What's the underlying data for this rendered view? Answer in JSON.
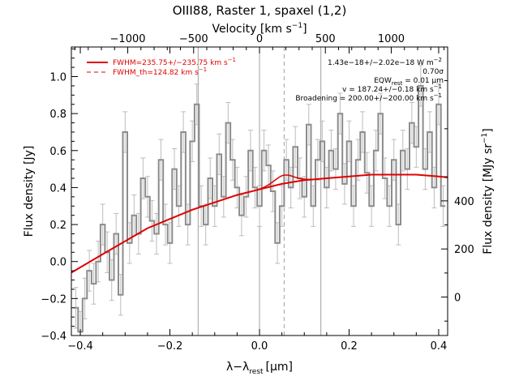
{
  "chart_data": {
    "type": "line",
    "title": "OIII88, Raster 1, spaxel (1,2)",
    "xlabel": "λ−λ",
    "xlabel_sub": "rest",
    "xlabel_unit": "[μm]",
    "ylabel": "Flux density [Jy]",
    "y2label": "Flux density [MJy sr",
    "y2label_sup": "−1",
    "y2label_end": "]",
    "toplabel": "Velocity [km s",
    "toplabel_sup": "−1",
    "toplabel_end": "]",
    "xlim": [
      -0.42,
      0.42
    ],
    "ylim": [
      -0.4,
      1.16
    ],
    "y2lim": [
      -160,
      1040
    ],
    "xticks": [
      -0.4,
      -0.2,
      0.0,
      0.2,
      0.4
    ],
    "xtick_labels": [
      "−0.4",
      "−0.2",
      "0.0",
      "0.2",
      "0.4"
    ],
    "yticks": [
      -0.4,
      -0.2,
      0.0,
      0.2,
      0.4,
      0.6,
      0.8,
      1.0
    ],
    "ytick_labels": [
      "−0.4",
      "−0.2",
      "0.0",
      "0.2",
      "0.4",
      "0.6",
      "0.8",
      "1.0"
    ],
    "y2ticks": [
      0,
      200,
      400
    ],
    "y2tick_labels": [
      "0",
      "200",
      "400"
    ],
    "vticks": [
      -1000,
      -500,
      0,
      500,
      1000
    ],
    "vtick_labels": [
      "−1000",
      "−500",
      "0",
      "500",
      "1000"
    ],
    "v_per_um": 3400,
    "vlines": [
      -0.137,
      0.0,
      0.137
    ],
    "dashed_vline": 0.055,
    "colors": {
      "spectrum": "#8c8c8c",
      "errorbar": "#bdbdbd",
      "fit": "#e00000",
      "grid": "#a0a0a0"
    },
    "spectrum": {
      "x": [
        -0.41,
        -0.4,
        -0.39,
        -0.38,
        -0.37,
        -0.36,
        -0.35,
        -0.34,
        -0.33,
        -0.32,
        -0.31,
        -0.3,
        -0.29,
        -0.28,
        -0.27,
        -0.26,
        -0.25,
        -0.24,
        -0.23,
        -0.22,
        -0.21,
        -0.2,
        -0.19,
        -0.18,
        -0.17,
        -0.16,
        -0.15,
        -0.14,
        -0.13,
        -0.12,
        -0.11,
        -0.1,
        -0.09,
        -0.08,
        -0.07,
        -0.06,
        -0.05,
        -0.04,
        -0.03,
        -0.02,
        -0.01,
        0.0,
        0.01,
        0.02,
        0.03,
        0.04,
        0.05,
        0.06,
        0.07,
        0.08,
        0.09,
        0.1,
        0.11,
        0.12,
        0.13,
        0.14,
        0.15,
        0.16,
        0.17,
        0.18,
        0.19,
        0.2,
        0.21,
        0.22,
        0.23,
        0.24,
        0.25,
        0.26,
        0.27,
        0.28,
        0.29,
        0.3,
        0.31,
        0.32,
        0.33,
        0.34,
        0.35,
        0.36,
        0.37,
        0.38,
        0.39,
        0.4,
        0.41
      ],
      "y": [
        -0.25,
        -0.38,
        -0.2,
        -0.05,
        -0.12,
        0.0,
        0.2,
        0.05,
        -0.1,
        0.15,
        -0.18,
        0.7,
        0.1,
        0.25,
        0.15,
        0.45,
        0.35,
        0.22,
        0.15,
        0.55,
        0.2,
        0.1,
        0.5,
        0.3,
        0.7,
        0.2,
        0.65,
        0.85,
        0.3,
        0.2,
        0.45,
        0.3,
        0.58,
        0.35,
        0.75,
        0.55,
        0.4,
        0.25,
        0.35,
        0.6,
        0.4,
        0.3,
        0.6,
        0.52,
        0.38,
        0.1,
        0.3,
        0.55,
        0.4,
        0.62,
        0.45,
        0.35,
        0.74,
        0.3,
        0.55,
        0.65,
        0.4,
        0.6,
        0.5,
        0.8,
        0.42,
        0.65,
        0.3,
        0.55,
        0.7,
        0.48,
        0.3,
        0.6,
        0.8,
        0.45,
        0.3,
        0.55,
        0.2,
        0.6,
        0.5,
        0.75,
        0.62,
        0.95,
        0.5,
        0.7,
        0.4,
        0.85,
        0.3
      ],
      "err": 0.11
    },
    "continuum": {
      "x": [
        -0.42,
        -0.35,
        -0.3,
        -0.25,
        -0.2,
        -0.15,
        -0.1,
        -0.05,
        0.0,
        0.05,
        0.1,
        0.15,
        0.2,
        0.25,
        0.3,
        0.35,
        0.4,
        0.42
      ],
      "y": [
        -0.06,
        0.04,
        0.11,
        0.18,
        0.23,
        0.28,
        0.32,
        0.36,
        0.39,
        0.42,
        0.44,
        0.45,
        0.46,
        0.47,
        0.47,
        0.47,
        0.46,
        0.455
      ]
    },
    "line_fit": {
      "center": 0.055,
      "sigma": 0.022,
      "amp": 0.045
    },
    "annotations": {
      "legend": [
        {
          "label": "FWHM=235.75+/−235.75 km s",
          "sup": "−1",
          "style": "solid"
        },
        {
          "label": "FWHM_th=124.82 km s",
          "sup": "−1",
          "style": "dashed"
        }
      ],
      "flux": "1.43e−18+/−2.02e−18 W m",
      "flux_sup": "−2",
      "sigma": "0.70σ",
      "eqw": "EQW",
      "eqw_sub": "rest",
      "eqw_val": " = 0.01 μm",
      "v": "v = 187.24+/−0.18 km s",
      "v_sup": "−1",
      "broadening": "Broadening = 200.00+/−200.00 km s",
      "broadening_sup": "−1"
    }
  }
}
